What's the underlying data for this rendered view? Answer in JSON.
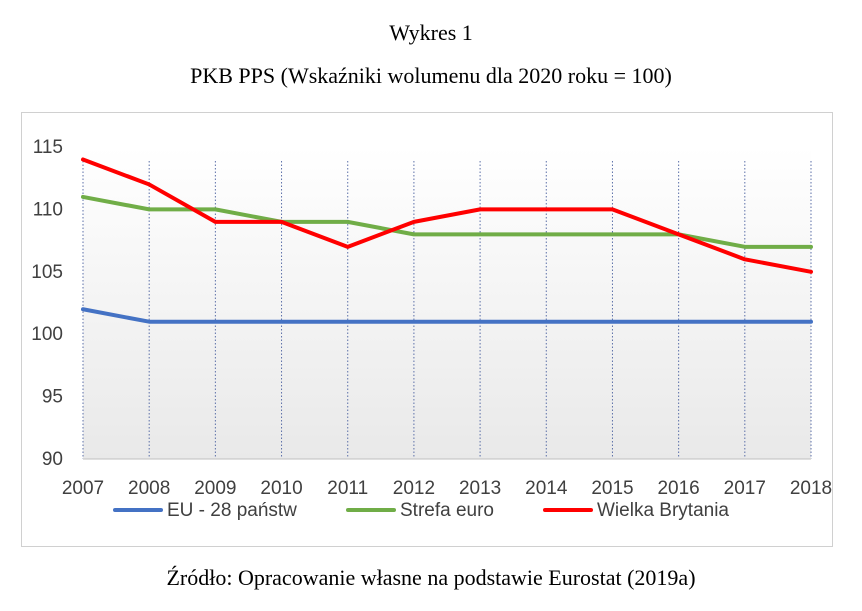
{
  "figure_label": "Wykres 1",
  "source": "Źródło: Opracowanie własne na podstawie Eurostat (2019a)",
  "chart_data": {
    "type": "line",
    "title": "PKB PPS (Wskaźniki wolumenu dla 2020 roku = 100)",
    "xlabel": "",
    "ylabel": "",
    "categories": [
      "2007",
      "2008",
      "2009",
      "2010",
      "2011",
      "2012",
      "2013",
      "2014",
      "2015",
      "2016",
      "2017",
      "2018"
    ],
    "ylim": [
      90,
      115
    ],
    "yticks": [
      90,
      95,
      100,
      105,
      110,
      115
    ],
    "legend_position": "bottom",
    "series": [
      {
        "name": "EU - 28 państw",
        "color": "#4472c4",
        "values": [
          102,
          101,
          101,
          101,
          101,
          101,
          101,
          101,
          101,
          101,
          101,
          101
        ]
      },
      {
        "name": "Strefa euro",
        "color": "#70ad47",
        "values": [
          111,
          110,
          110,
          109,
          109,
          108,
          108,
          108,
          108,
          108,
          107,
          107
        ]
      },
      {
        "name": "Wielka Brytania",
        "color": "#ff0000",
        "values": [
          114,
          112,
          109,
          109,
          107,
          109,
          110,
          110,
          110,
          108,
          106,
          105
        ]
      }
    ]
  }
}
